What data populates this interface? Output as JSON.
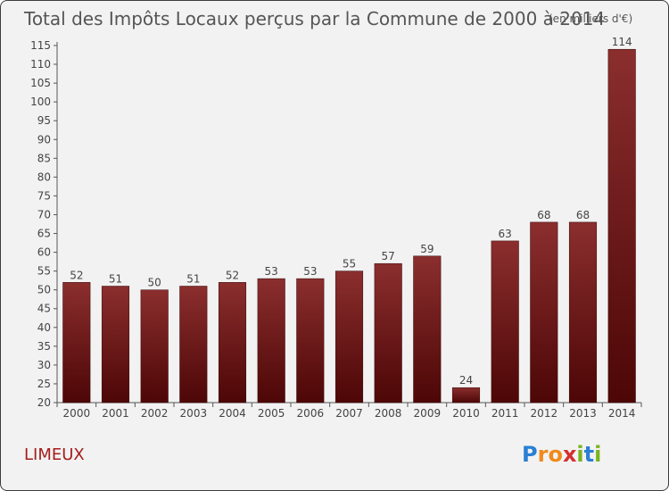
{
  "chart_data": {
    "type": "bar",
    "title": "Total des Impôts Locaux perçus par la Commune de 2000 à 2014",
    "subtitle": "(en milliers d'€)",
    "categories": [
      "2000",
      "2001",
      "2002",
      "2003",
      "2004",
      "2005",
      "2006",
      "2007",
      "2008",
      "2009",
      "2010",
      "2011",
      "2012",
      "2013",
      "2014"
    ],
    "values": [
      52,
      51,
      50,
      51,
      52,
      53,
      53,
      55,
      57,
      59,
      24,
      63,
      68,
      68,
      114
    ],
    "xlabel": "",
    "ylabel": "",
    "ylim": [
      20,
      115
    ],
    "yticks": [
      20,
      25,
      30,
      35,
      40,
      45,
      50,
      55,
      60,
      65,
      70,
      75,
      80,
      85,
      90,
      95,
      100,
      105,
      110,
      115
    ],
    "grid": false,
    "bar_color": "#7a1c1c"
  },
  "commune_name": "LIMEUX",
  "brand": {
    "letters": [
      {
        "ch": "P",
        "color": "#2a7fd4"
      },
      {
        "ch": "r",
        "color": "#f08a1c"
      },
      {
        "ch": "o",
        "color": "#f08a1c"
      },
      {
        "ch": "x",
        "color": "#d62f2f"
      },
      {
        "ch": "i",
        "color": "#7ab31f"
      },
      {
        "ch": "t",
        "color": "#2a7fd4"
      },
      {
        "ch": "i",
        "color": "#7ab31f"
      }
    ]
  }
}
